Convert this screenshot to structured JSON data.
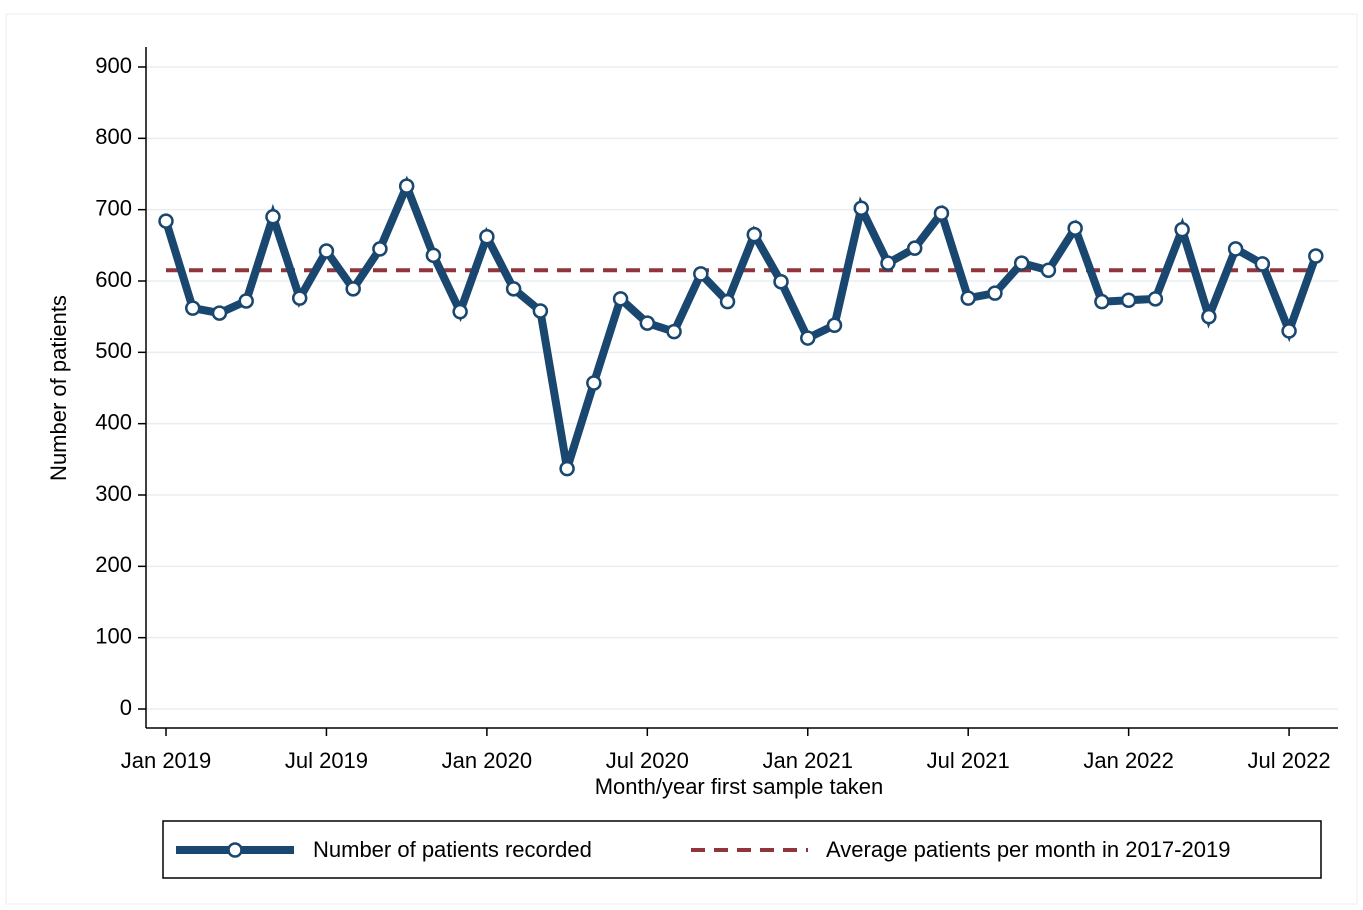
{
  "chart_data": {
    "type": "line",
    "x_label": "Month/year first sample taken",
    "y_label": "Number of patients",
    "x": [
      "2019-01",
      "2019-02",
      "2019-03",
      "2019-04",
      "2019-05",
      "2019-06",
      "2019-07",
      "2019-08",
      "2019-09",
      "2019-10",
      "2019-11",
      "2019-12",
      "2020-01",
      "2020-02",
      "2020-03",
      "2020-04",
      "2020-05",
      "2020-06",
      "2020-07",
      "2020-08",
      "2020-09",
      "2020-10",
      "2020-11",
      "2020-12",
      "2021-01",
      "2021-02",
      "2021-03",
      "2021-04",
      "2021-05",
      "2021-06",
      "2021-07",
      "2021-08",
      "2021-09",
      "2021-10",
      "2021-11",
      "2021-12",
      "2022-01",
      "2022-02",
      "2022-03",
      "2022-04",
      "2022-05",
      "2022-06",
      "2022-07",
      "2022-08"
    ],
    "series": [
      {
        "name": "Number of patients recorded",
        "color": "#1a476f",
        "values": [
          684,
          562,
          555,
          572,
          690,
          576,
          642,
          589,
          645,
          733,
          636,
          557,
          662,
          589,
          558,
          337,
          457,
          575,
          541,
          529,
          610,
          571,
          665,
          599,
          520,
          538,
          702,
          625,
          646,
          695,
          576,
          583,
          625,
          615,
          674,
          571,
          573,
          575,
          672,
          550,
          645,
          624,
          530,
          635
        ]
      }
    ],
    "reference_line": {
      "name": "Average patients per month in 2017-2019",
      "color": "#90353b",
      "value": 615
    },
    "ylim": [
      0,
      900
    ],
    "yticks": [
      0,
      100,
      200,
      300,
      400,
      500,
      600,
      700,
      800,
      900
    ],
    "xticks": [
      {
        "value": "2019-01",
        "label": "Jan 2019"
      },
      {
        "value": "2019-07",
        "label": "Jul 2019"
      },
      {
        "value": "2020-01",
        "label": "Jan 2020"
      },
      {
        "value": "2020-07",
        "label": "Jul 2020"
      },
      {
        "value": "2021-01",
        "label": "Jan 2021"
      },
      {
        "value": "2021-07",
        "label": "Jul 2021"
      },
      {
        "value": "2022-01",
        "label": "Jan 2022"
      },
      {
        "value": "2022-07",
        "label": "Jul 2022"
      }
    ],
    "grid": true
  }
}
